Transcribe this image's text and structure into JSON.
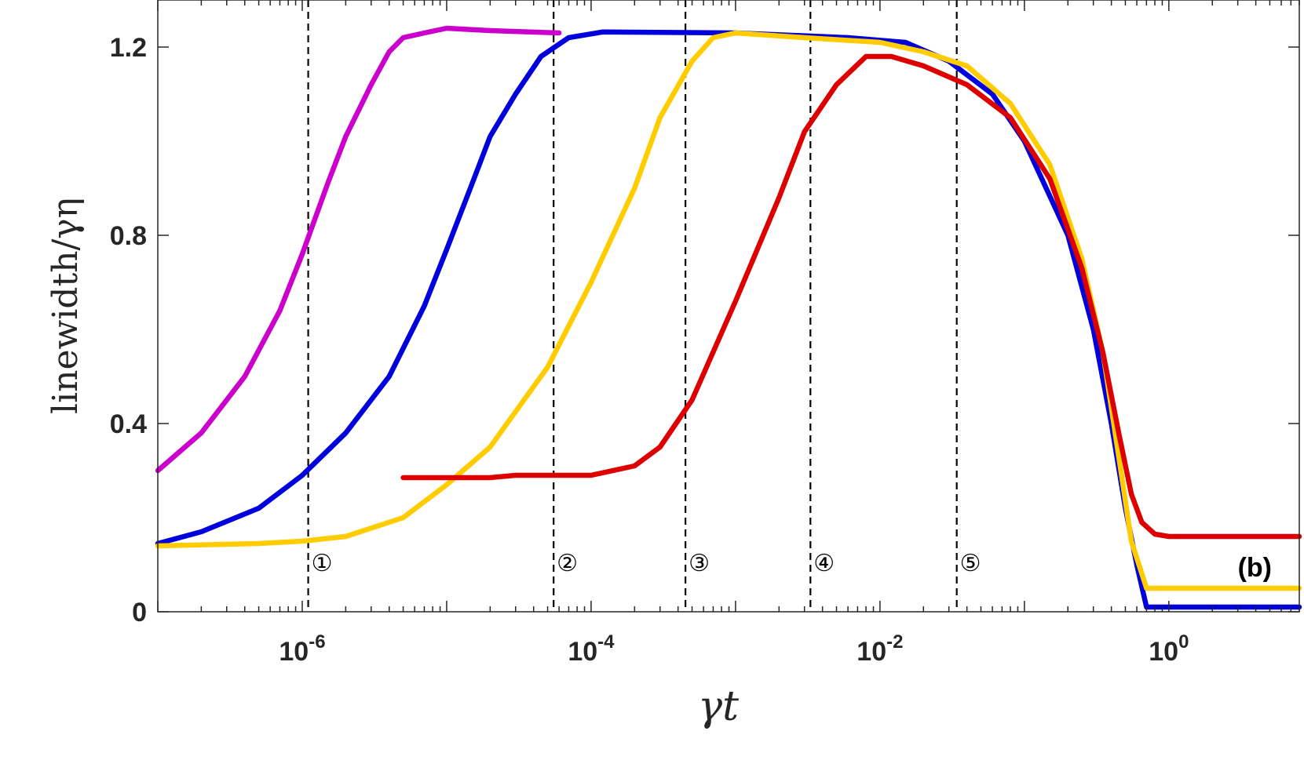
{
  "chart_data": {
    "type": "line",
    "title": "",
    "xlabel": "γt",
    "ylabel": "linewidth/γη",
    "xscale": "log",
    "xlim": [
      1e-07,
      8
    ],
    "ylim": [
      0,
      1.3
    ],
    "xticks": [
      {
        "value": 1e-06,
        "base": "10",
        "exp": "-6"
      },
      {
        "value": 0.0001,
        "base": "10",
        "exp": "-4"
      },
      {
        "value": 0.01,
        "base": "10",
        "exp": "-2"
      },
      {
        "value": 1,
        "base": "10",
        "exp": "0"
      }
    ],
    "yticks": [
      {
        "value": 0,
        "label": "0"
      },
      {
        "value": 0.4,
        "label": "0.4"
      },
      {
        "value": 0.8,
        "label": "0.8"
      },
      {
        "value": 1.2,
        "label": "1.2"
      }
    ],
    "grid": false,
    "annotation": "(b)",
    "vlines": [
      {
        "x": 1.1e-06,
        "label": "①"
      },
      {
        "x": 5.5e-05,
        "label": "②"
      },
      {
        "x": 0.00045,
        "label": "③"
      },
      {
        "x": 0.0033,
        "label": "④"
      },
      {
        "x": 0.034,
        "label": "⑤"
      }
    ],
    "series": [
      {
        "color": "#cc00cc",
        "points": [
          [
            1e-07,
            0.3
          ],
          [
            2e-07,
            0.38
          ],
          [
            4e-07,
            0.5
          ],
          [
            7e-07,
            0.64
          ],
          [
            1e-06,
            0.76
          ],
          [
            1.5e-06,
            0.91
          ],
          [
            2e-06,
            1.01
          ],
          [
            3e-06,
            1.12
          ],
          [
            4e-06,
            1.19
          ],
          [
            5e-06,
            1.22
          ],
          [
            7e-06,
            1.23
          ],
          [
            1e-05,
            1.24
          ],
          [
            2e-05,
            1.235
          ],
          [
            6e-05,
            1.23
          ]
        ]
      },
      {
        "color": "#0000dd",
        "points": [
          [
            1e-07,
            0.145
          ],
          [
            2e-07,
            0.17
          ],
          [
            5e-07,
            0.22
          ],
          [
            1e-06,
            0.29
          ],
          [
            2e-06,
            0.38
          ],
          [
            4e-06,
            0.5
          ],
          [
            7e-06,
            0.65
          ],
          [
            1e-05,
            0.77
          ],
          [
            1.5e-05,
            0.91
          ],
          [
            2e-05,
            1.01
          ],
          [
            3e-05,
            1.1
          ],
          [
            4.5e-05,
            1.18
          ],
          [
            7e-05,
            1.22
          ],
          [
            0.00012,
            1.232
          ],
          [
            0.001,
            1.23
          ],
          [
            0.006,
            1.22
          ],
          [
            0.015,
            1.21
          ],
          [
            0.03,
            1.17
          ],
          [
            0.06,
            1.1
          ],
          [
            0.1,
            1.0
          ],
          [
            0.2,
            0.8
          ],
          [
            0.3,
            0.6
          ],
          [
            0.4,
            0.4
          ],
          [
            0.5,
            0.22
          ],
          [
            0.6,
            0.1
          ],
          [
            0.7,
            0.01
          ],
          [
            8,
            0.01
          ]
        ]
      },
      {
        "color": "#ffcc00",
        "points": [
          [
            1e-07,
            0.14
          ],
          [
            5e-07,
            0.145
          ],
          [
            1e-06,
            0.15
          ],
          [
            2e-06,
            0.16
          ],
          [
            5e-06,
            0.2
          ],
          [
            1e-05,
            0.27
          ],
          [
            2e-05,
            0.35
          ],
          [
            5e-05,
            0.52
          ],
          [
            0.0001,
            0.7
          ],
          [
            0.0002,
            0.9
          ],
          [
            0.0003,
            1.05
          ],
          [
            0.0005,
            1.17
          ],
          [
            0.0007,
            1.22
          ],
          [
            0.001,
            1.23
          ],
          [
            0.003,
            1.22
          ],
          [
            0.01,
            1.21
          ],
          [
            0.02,
            1.19
          ],
          [
            0.04,
            1.16
          ],
          [
            0.08,
            1.08
          ],
          [
            0.15,
            0.95
          ],
          [
            0.25,
            0.75
          ],
          [
            0.35,
            0.55
          ],
          [
            0.45,
            0.33
          ],
          [
            0.55,
            0.15
          ],
          [
            0.7,
            0.05
          ],
          [
            8,
            0.05
          ]
        ]
      },
      {
        "color": "#dd0000",
        "points": [
          [
            5e-06,
            0.285
          ],
          [
            2e-05,
            0.285
          ],
          [
            3e-05,
            0.29
          ],
          [
            0.0001,
            0.29
          ],
          [
            0.0002,
            0.31
          ],
          [
            0.0003,
            0.35
          ],
          [
            0.0005,
            0.45
          ],
          [
            0.001,
            0.66
          ],
          [
            0.002,
            0.88
          ],
          [
            0.003,
            1.02
          ],
          [
            0.005,
            1.12
          ],
          [
            0.008,
            1.18
          ],
          [
            0.012,
            1.18
          ],
          [
            0.02,
            1.16
          ],
          [
            0.04,
            1.12
          ],
          [
            0.08,
            1.05
          ],
          [
            0.15,
            0.92
          ],
          [
            0.25,
            0.73
          ],
          [
            0.35,
            0.55
          ],
          [
            0.45,
            0.38
          ],
          [
            0.55,
            0.25
          ],
          [
            0.65,
            0.19
          ],
          [
            0.8,
            0.165
          ],
          [
            1,
            0.16
          ],
          [
            8,
            0.16
          ]
        ]
      }
    ]
  }
}
